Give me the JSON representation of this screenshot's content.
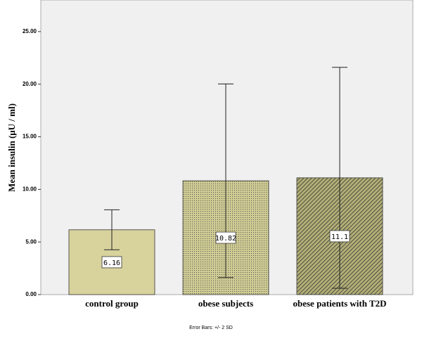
{
  "chart_data": {
    "type": "bar",
    "y_label": "Mean insulin (μU / ml)",
    "footnote": "Error Bars: +/- 2 SD",
    "categories": [
      "control group",
      "obese subjects",
      "obese patients with T2D"
    ],
    "values": [
      6.16,
      10.82,
      11.1
    ],
    "errors": [
      1.9,
      9.2,
      10.5
    ],
    "colors": [
      "#d8d39d",
      "#cfcb93",
      "#b3af77"
    ],
    "ylim": [
      0,
      28
    ],
    "yticks": [
      {
        "value": 0,
        "label": "0.00"
      },
      {
        "value": 5,
        "label": "5.00"
      },
      {
        "value": 10,
        "label": "10.00"
      },
      {
        "value": 15,
        "label": "15.00"
      },
      {
        "value": 20,
        "label": "20.00"
      },
      {
        "value": 25,
        "label": "25.00"
      }
    ]
  }
}
